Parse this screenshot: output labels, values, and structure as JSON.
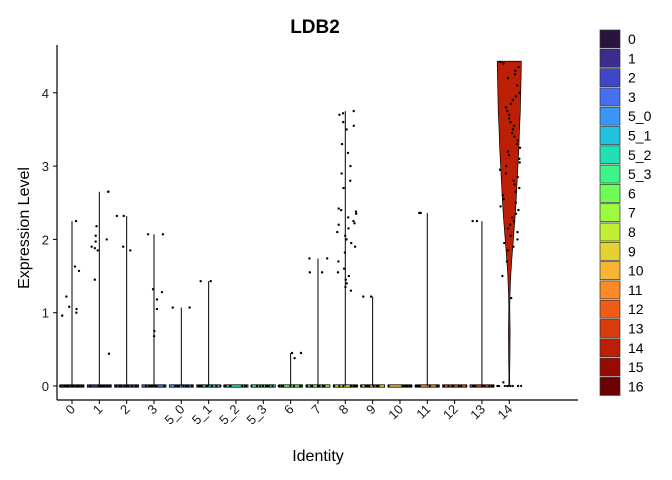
{
  "chart_data": {
    "type": "violin",
    "title": "LDB2",
    "xlabel": "Identity",
    "ylabel": "Expression Level",
    "ylim": [
      0,
      4.45
    ],
    "yticks": [
      0,
      1,
      2,
      3,
      4
    ],
    "grid": false,
    "legend_position": "right",
    "categories": [
      "0",
      "1",
      "2",
      "3",
      "5_0",
      "5_1",
      "5_2",
      "5_3",
      "6",
      "7",
      "8",
      "9",
      "10",
      "11",
      "12",
      "13",
      "14",
      "15",
      "16"
    ],
    "legend": [
      {
        "label": "0",
        "color": "#2b1340"
      },
      {
        "label": "1",
        "color": "#3b2c8e"
      },
      {
        "label": "2",
        "color": "#4046c9"
      },
      {
        "label": "3",
        "color": "#4670f0"
      },
      {
        "label": "5_0",
        "color": "#3a96f5"
      },
      {
        "label": "5_1",
        "color": "#22c1de"
      },
      {
        "label": "5_2",
        "color": "#1fe1b4"
      },
      {
        "label": "5_3",
        "color": "#3cf584"
      },
      {
        "label": "6",
        "color": "#6efc55"
      },
      {
        "label": "7",
        "color": "#9cfb3f"
      },
      {
        "label": "8",
        "color": "#c2ef34"
      },
      {
        "label": "9",
        "color": "#e4d235"
      },
      {
        "label": "10",
        "color": "#f8b534"
      },
      {
        "label": "11",
        "color": "#fb8a26"
      },
      {
        "label": "12",
        "color": "#f05c16"
      },
      {
        "label": "13",
        "color": "#d93c0c"
      },
      {
        "label": "14",
        "color": "#bd1e06"
      },
      {
        "label": "15",
        "color": "#980a02"
      },
      {
        "label": "16",
        "color": "#6b0102"
      }
    ],
    "series": [
      {
        "category": "0",
        "max": 2.25,
        "points": [
          2.25,
          1.63,
          1.57,
          1.22,
          1.08,
          1.05,
          1.0,
          0.96
        ]
      },
      {
        "category": "1",
        "max": 2.65,
        "points": [
          2.65,
          2.65,
          2.18,
          2.05,
          2.0,
          1.97,
          1.9,
          1.88,
          1.85,
          1.45,
          0.44
        ]
      },
      {
        "category": "2",
        "max": 2.32,
        "points": [
          2.32,
          2.32,
          1.9,
          1.85
        ]
      },
      {
        "category": "3",
        "max": 2.07,
        "points": [
          2.07,
          2.07,
          1.32,
          1.28,
          1.18,
          1.05,
          0.75,
          0.68
        ]
      },
      {
        "category": "5_0",
        "max": 1.07,
        "points": [
          1.07,
          1.07
        ]
      },
      {
        "category": "5_1",
        "max": 1.43,
        "points": [
          1.43,
          1.43
        ]
      },
      {
        "category": "5_2",
        "max": 0,
        "points": []
      },
      {
        "category": "5_3",
        "max": 0,
        "points": []
      },
      {
        "category": "6",
        "max": 0.45,
        "points": [
          0.45,
          0.45,
          0.38
        ]
      },
      {
        "category": "7",
        "max": 1.74,
        "points": [
          1.74,
          1.74,
          1.55,
          1.55
        ]
      },
      {
        "category": "8",
        "max": 3.75,
        "points": [
          3.75,
          3.72,
          3.7,
          3.6,
          3.55,
          3.5,
          3.3,
          3.18,
          3.0,
          2.9,
          2.8,
          2.7,
          2.42,
          2.4,
          2.38,
          2.35,
          2.3,
          2.25,
          2.22,
          2.2,
          2.15,
          2.1,
          2.05,
          2.0,
          1.95,
          1.9,
          1.82,
          1.7,
          1.6,
          1.55,
          1.5,
          1.45,
          1.4,
          1.35,
          1.3
        ]
      },
      {
        "category": "9",
        "max": 1.22,
        "points": [
          1.22,
          1.22
        ]
      },
      {
        "category": "10",
        "max": 0,
        "points": []
      },
      {
        "category": "11",
        "max": 2.36,
        "points": [
          2.36,
          2.36
        ]
      },
      {
        "category": "12",
        "max": 0,
        "points": []
      },
      {
        "category": "13",
        "max": 2.25,
        "points": [
          2.25,
          2.25
        ]
      },
      {
        "category": "14",
        "max": 4.43,
        "violin": true,
        "points": [
          4.42,
          4.4,
          4.35,
          4.3,
          4.25,
          4.2,
          4.1,
          4.0,
          3.95,
          3.9,
          3.85,
          3.8,
          3.75,
          3.7,
          3.65,
          3.6,
          3.55,
          3.5,
          3.45,
          3.4,
          3.35,
          3.3,
          3.25,
          3.2,
          3.15,
          3.1,
          3.05,
          3.0,
          2.95,
          2.9,
          2.85,
          2.8,
          2.75,
          2.7,
          2.65,
          2.6,
          2.55,
          2.5,
          2.45,
          2.4,
          2.35,
          2.3,
          2.25,
          2.2,
          2.15,
          2.1,
          2.05,
          2.0,
          1.95,
          1.9,
          1.85,
          1.7,
          1.5,
          1.2,
          0.05,
          0.0
        ],
        "density": [
          [
            0,
            0.04
          ],
          [
            0.15,
            0.03
          ],
          [
            0.35,
            0.05
          ],
          [
            0.55,
            0.06
          ],
          [
            0.75,
            0.07
          ],
          [
            0.95,
            0.05
          ],
          [
            1.1,
            0.04
          ],
          [
            1.25,
            0.06
          ],
          [
            1.5,
            0.12
          ],
          [
            1.75,
            0.22
          ],
          [
            2.0,
            0.34
          ],
          [
            2.25,
            0.46
          ],
          [
            2.5,
            0.56
          ],
          [
            2.75,
            0.64
          ],
          [
            3.0,
            0.72
          ],
          [
            3.25,
            0.8
          ],
          [
            3.5,
            0.85
          ],
          [
            3.75,
            0.92
          ],
          [
            4.0,
            0.95
          ],
          [
            4.2,
            0.98
          ],
          [
            4.35,
            1.0
          ],
          [
            4.43,
            1.0
          ]
        ]
      }
    ]
  }
}
